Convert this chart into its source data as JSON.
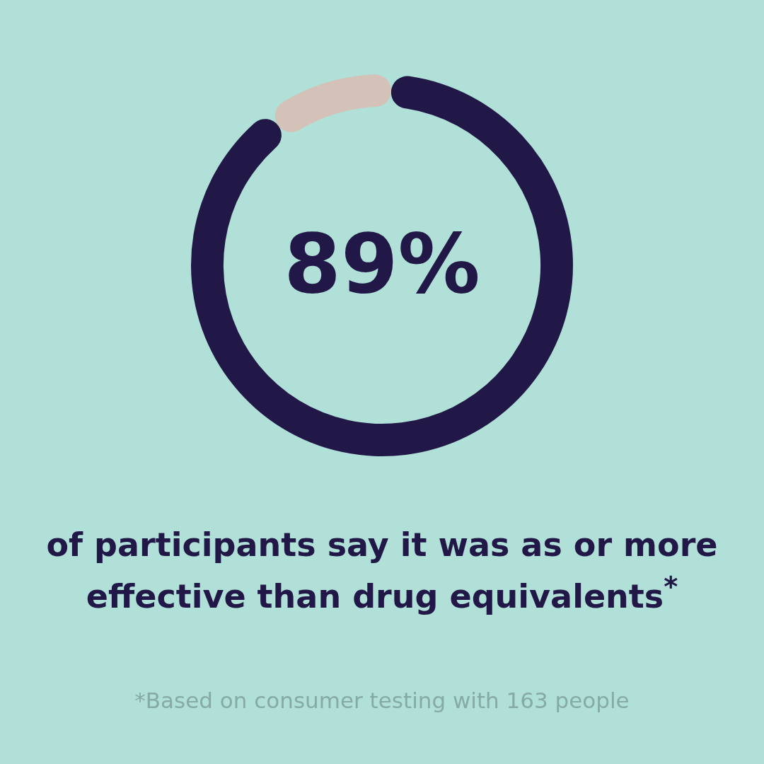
{
  "chart_data": {
    "type": "donut",
    "categories": [
      null,
      null
    ],
    "values": [
      89,
      11
    ],
    "colors": [
      "#211848",
      "#d4c1b7"
    ],
    "value_labels": [
      "89%",
      null
    ],
    "annotations": [
      "of participants say it was as or more effective than drug equivalents$^{*}$",
      "*Based on consumer testing with 163 people"
    ]
  }
}
